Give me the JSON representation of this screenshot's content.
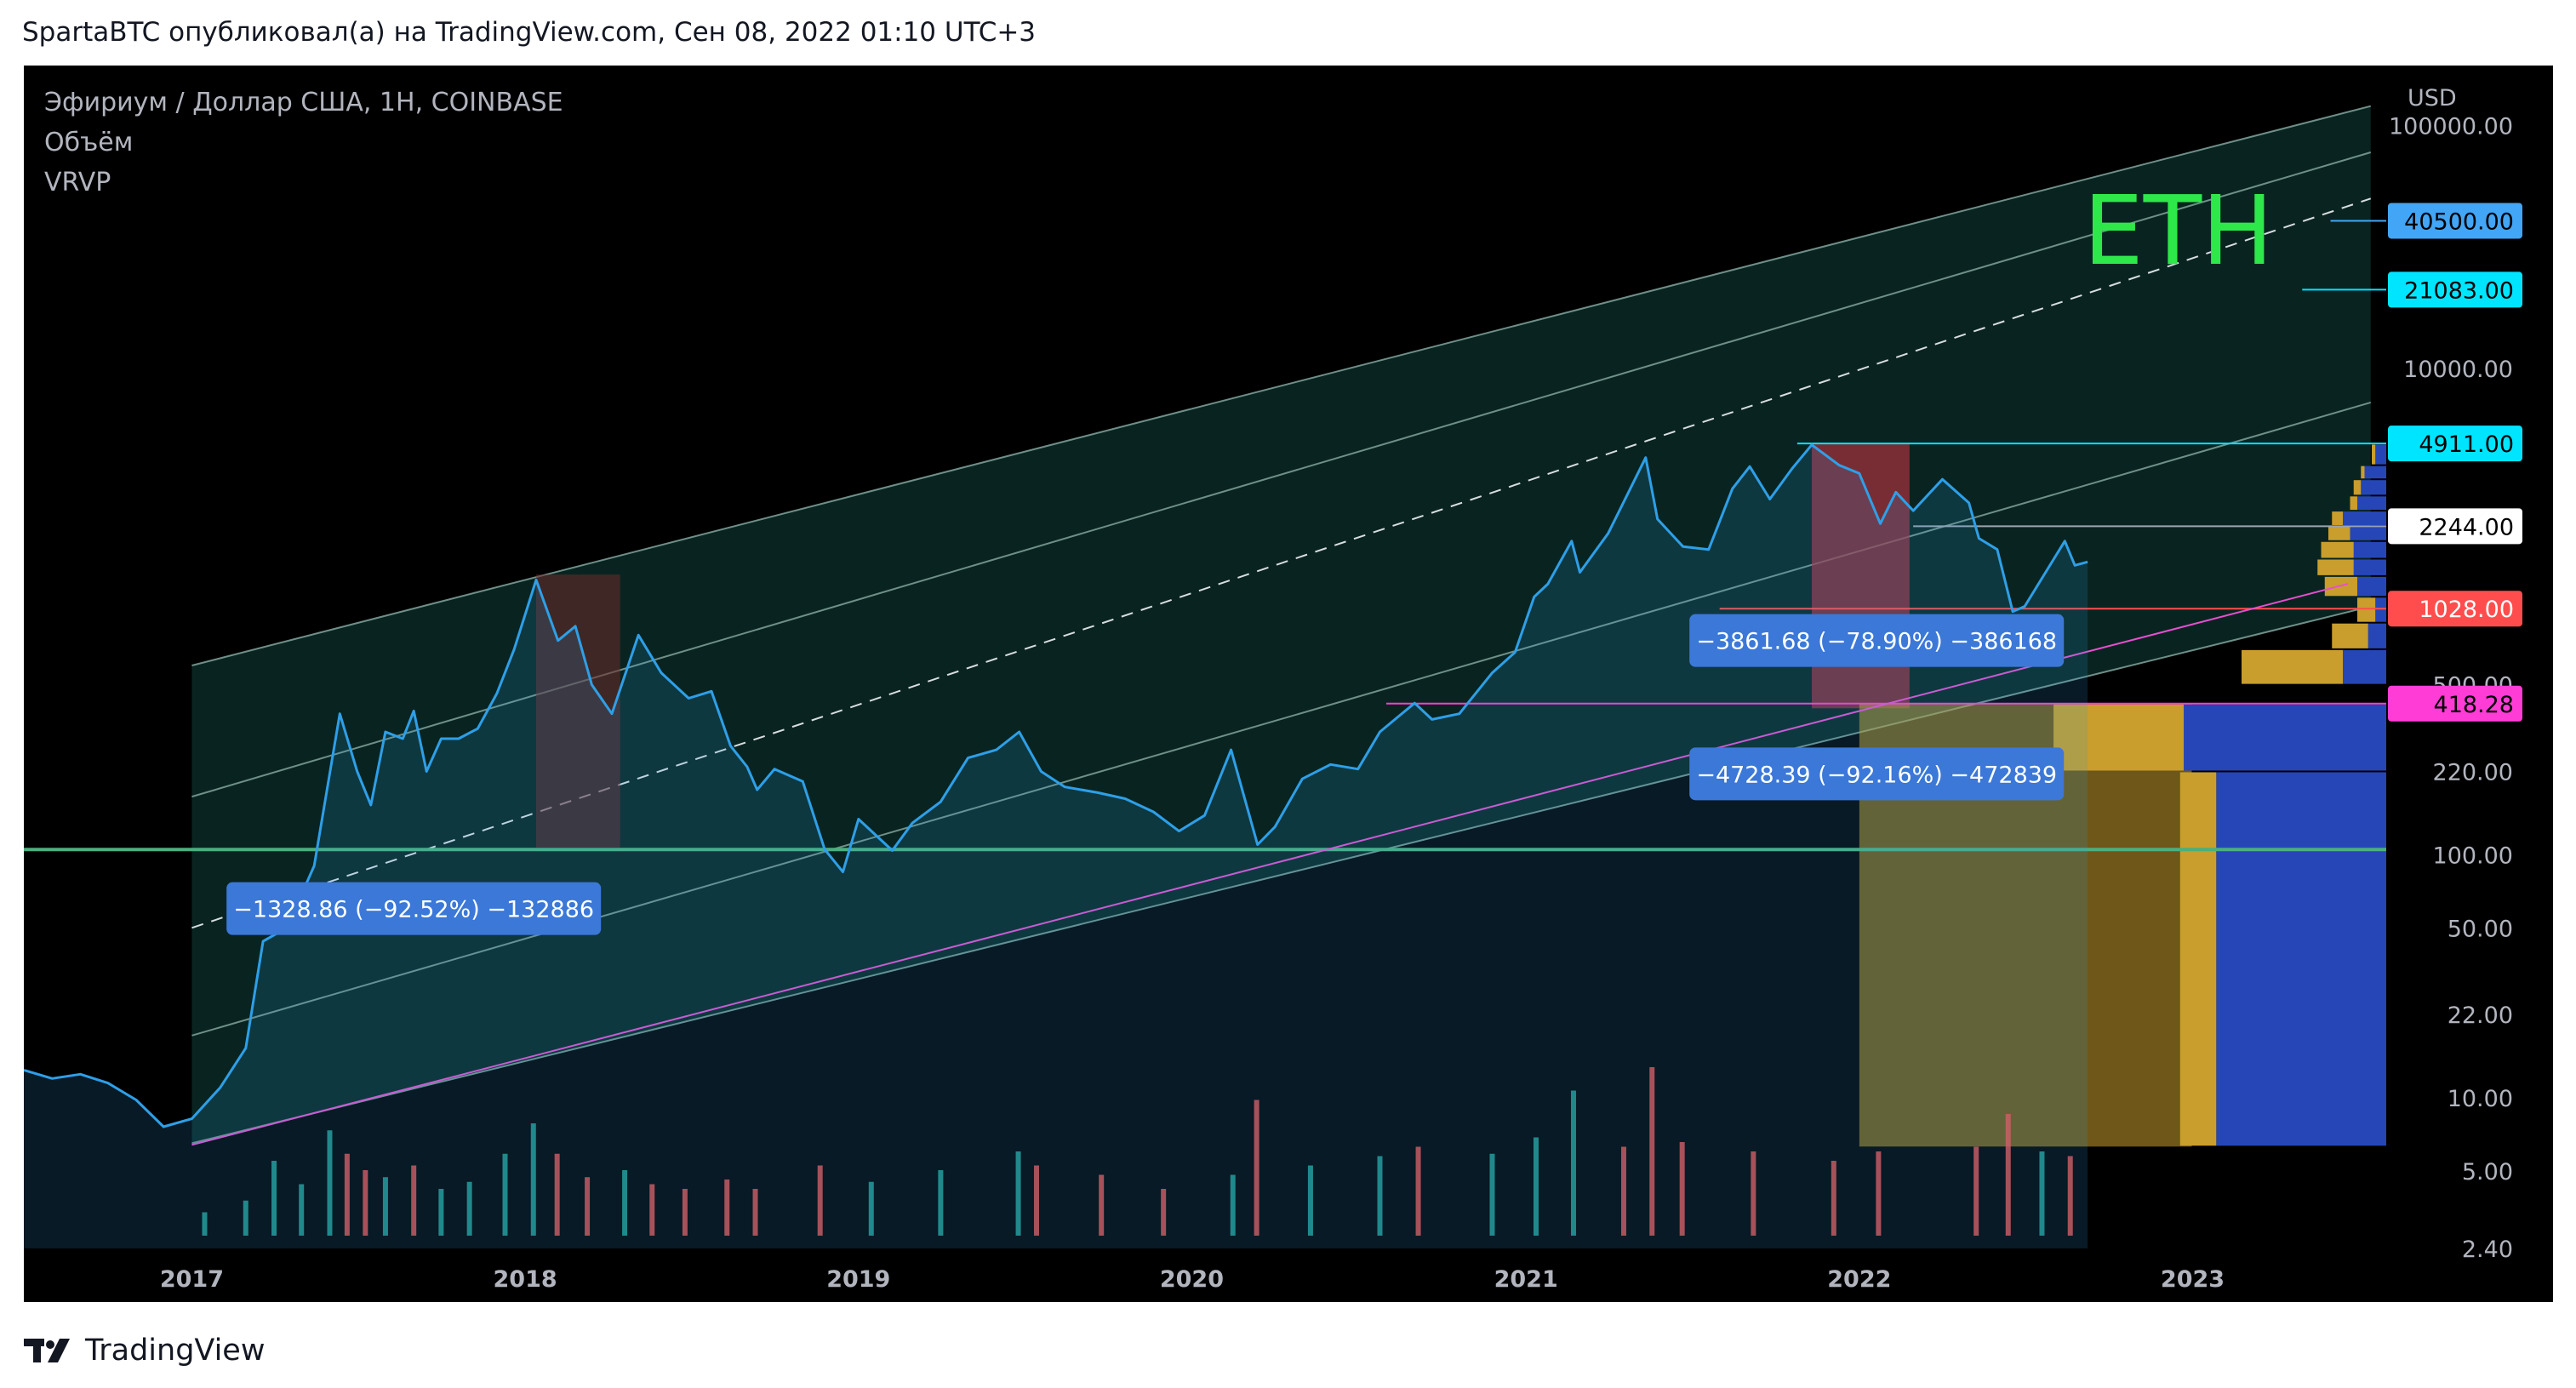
{
  "caption": "SpartaBTC опубликовал(а) на TradingView.com, Сен 08, 2022 01:10 UTC+3",
  "footer": {
    "brand": "TradingView",
    "logo_icon": "tradingview-logo-icon"
  },
  "legend": {
    "symbol": "Эфириум / Доллар США, 1H, COINBASE",
    "indicator1": "Объём",
    "indicator2": "VRVP"
  },
  "colors": {
    "background": "#000000",
    "price_line": "#2e9fe8",
    "channel_fill": "#0b2a26",
    "channel_lines": "#6f8f88",
    "eth_label": "#2ee84a",
    "green_line": "#4caf7d",
    "pink_line": "#e64fd0",
    "vol_up": "#26a69a",
    "vol_down": "#ef5350",
    "callout": "#3b78d8",
    "vrvp_gold": "#c99e2c",
    "vrvp_blue": "#2646b8"
  },
  "chart_data": {
    "type": "line",
    "title": "Эфириум / Доллар США, 1H, COINBASE",
    "annotation_text": "ETH",
    "yscale": "log",
    "ylim": [
      2.4,
      150000
    ],
    "xlim": [
      "2016-07-01",
      "2023-08-01"
    ],
    "y_unit": "USD",
    "y_ticks": [
      "100000.00",
      "10000.00",
      "500.00",
      "220.00",
      "100.00",
      "50.00",
      "22.00",
      "10.00",
      "5.00",
      "2.40"
    ],
    "y_tick_values": [
      100000,
      10000,
      500,
      220,
      100,
      50,
      22,
      10,
      5,
      2.4
    ],
    "x_ticks": [
      "2017",
      "2018",
      "2019",
      "2020",
      "2021",
      "2022",
      "2023"
    ],
    "x_tick_values": [
      "2017-01-01",
      "2018-01-01",
      "2019-01-01",
      "2020-01-01",
      "2021-01-01",
      "2022-01-01",
      "2023-01-01"
    ],
    "price_labels": [
      {
        "text": "40500.00",
        "value": 40500,
        "bg": "#42a5f5",
        "fg": "#000000"
      },
      {
        "text": "21083.00",
        "value": 21083,
        "bg": "#00e5ff",
        "fg": "#000000"
      },
      {
        "text": "4911.00",
        "value": 4911,
        "bg": "#00e5ff",
        "fg": "#000000"
      },
      {
        "text": "2244.00",
        "value": 2244,
        "bg": "#ffffff",
        "fg": "#000000"
      },
      {
        "text": "1028.00",
        "value": 1028,
        "bg": "#ff4d4d",
        "fg": "#ffffff"
      },
      {
        "text": "418.28",
        "value": 418.28,
        "bg": "#ff3cd6",
        "fg": "#000000"
      }
    ],
    "series": [
      {
        "dates": [
          "2016-07-01",
          "2016-08-01",
          "2016-09-01",
          "2016-10-01",
          "2016-11-01",
          "2016-12-01",
          "2017-01-01",
          "2017-02-01",
          "2017-03-01",
          "2017-03-20",
          "2017-04-15",
          "2017-05-15",
          "2017-06-12",
          "2017-07-01",
          "2017-07-16",
          "2017-08-01",
          "2017-08-20",
          "2017-09-01",
          "2017-09-15",
          "2017-10-01",
          "2017-10-20",
          "2017-11-10",
          "2017-12-01",
          "2017-12-20",
          "2018-01-13",
          "2018-02-06",
          "2018-02-25",
          "2018-03-15",
          "2018-04-06",
          "2018-05-05",
          "2018-05-30",
          "2018-06-29",
          "2018-07-24",
          "2018-08-14",
          "2018-09-01",
          "2018-09-12",
          "2018-10-01",
          "2018-11-01",
          "2018-11-25",
          "2018-12-15",
          "2019-01-01",
          "2019-02-07",
          "2019-03-01",
          "2019-04-01",
          "2019-05-01",
          "2019-06-01",
          "2019-06-26",
          "2019-07-20",
          "2019-08-15",
          "2019-09-20",
          "2019-10-20",
          "2019-11-20",
          "2019-12-18",
          "2020-01-15",
          "2020-02-13",
          "2020-03-13",
          "2020-04-01",
          "2020-05-01",
          "2020-06-01",
          "2020-07-01",
          "2020-07-25",
          "2020-09-01",
          "2020-09-20",
          "2020-10-20",
          "2020-11-25",
          "2020-12-20",
          "2021-01-10",
          "2021-01-25",
          "2021-02-20",
          "2021-03-01",
          "2021-04-01",
          "2021-05-12",
          "2021-05-25",
          "2021-06-22",
          "2021-07-20",
          "2021-08-15",
          "2021-09-03",
          "2021-09-25",
          "2021-10-20",
          "2021-11-10",
          "2021-12-10",
          "2022-01-01",
          "2022-01-24",
          "2022-02-10",
          "2022-03-01",
          "2022-04-02",
          "2022-05-01",
          "2022-05-12",
          "2022-06-01",
          "2022-06-18",
          "2022-07-01",
          "2022-08-14",
          "2022-08-25",
          "2022-09-08"
        ],
        "values": [
          13,
          12,
          12.5,
          11.5,
          9.8,
          7.6,
          8.2,
          11,
          16,
          44,
          50,
          90,
          380,
          220,
          160,
          320,
          300,
          390,
          220,
          300,
          300,
          330,
          460,
          700,
          1350,
          760,
          870,
          500,
          380,
          800,
          560,
          440,
          470,
          280,
          230,
          185,
          225,
          200,
          105,
          85,
          140,
          104,
          135,
          165,
          250,
          270,
          320,
          220,
          190,
          180,
          170,
          150,
          125,
          145,
          270,
          110,
          130,
          205,
          235,
          225,
          320,
          420,
          360,
          380,
          560,
          680,
          1150,
          1300,
          1950,
          1450,
          2100,
          4300,
          2400,
          1850,
          1800,
          3200,
          3950,
          2900,
          3900,
          4850,
          4000,
          3700,
          2300,
          3100,
          2600,
          3500,
          2800,
          2000,
          1800,
          1000,
          1050,
          1950,
          1550,
          1600
        ],
        "name": ""
      }
    ],
    "volume": [
      {
        "date": "2017-01-15",
        "v": 1.0,
        "dir": "up"
      },
      {
        "date": "2017-03-01",
        "v": 1.5,
        "dir": "up"
      },
      {
        "date": "2017-04-01",
        "v": 3.2,
        "dir": "up"
      },
      {
        "date": "2017-05-01",
        "v": 2.2,
        "dir": "up"
      },
      {
        "date": "2017-06-01",
        "v": 4.5,
        "dir": "up"
      },
      {
        "date": "2017-06-20",
        "v": 3.5,
        "dir": "down"
      },
      {
        "date": "2017-07-10",
        "v": 2.8,
        "dir": "down"
      },
      {
        "date": "2017-08-01",
        "v": 2.5,
        "dir": "up"
      },
      {
        "date": "2017-09-01",
        "v": 3.0,
        "dir": "down"
      },
      {
        "date": "2017-10-01",
        "v": 2.0,
        "dir": "up"
      },
      {
        "date": "2017-11-01",
        "v": 2.3,
        "dir": "up"
      },
      {
        "date": "2017-12-10",
        "v": 3.5,
        "dir": "up"
      },
      {
        "date": "2018-01-10",
        "v": 4.8,
        "dir": "up"
      },
      {
        "date": "2018-02-05",
        "v": 3.5,
        "dir": "down"
      },
      {
        "date": "2018-03-10",
        "v": 2.5,
        "dir": "down"
      },
      {
        "date": "2018-04-20",
        "v": 2.8,
        "dir": "up"
      },
      {
        "date": "2018-05-20",
        "v": 2.2,
        "dir": "down"
      },
      {
        "date": "2018-06-25",
        "v": 2.0,
        "dir": "down"
      },
      {
        "date": "2018-08-10",
        "v": 2.4,
        "dir": "down"
      },
      {
        "date": "2018-09-10",
        "v": 2.0,
        "dir": "down"
      },
      {
        "date": "2018-11-20",
        "v": 3.0,
        "dir": "down"
      },
      {
        "date": "2019-01-15",
        "v": 2.3,
        "dir": "up"
      },
      {
        "date": "2019-04-01",
        "v": 2.8,
        "dir": "up"
      },
      {
        "date": "2019-06-25",
        "v": 3.6,
        "dir": "up"
      },
      {
        "date": "2019-07-15",
        "v": 3.0,
        "dir": "down"
      },
      {
        "date": "2019-09-24",
        "v": 2.6,
        "dir": "down"
      },
      {
        "date": "2019-12-01",
        "v": 2.0,
        "dir": "down"
      },
      {
        "date": "2020-02-15",
        "v": 2.6,
        "dir": "up"
      },
      {
        "date": "2020-03-12",
        "v": 5.8,
        "dir": "down"
      },
      {
        "date": "2020-05-10",
        "v": 3.0,
        "dir": "up"
      },
      {
        "date": "2020-07-25",
        "v": 3.4,
        "dir": "up"
      },
      {
        "date": "2020-09-05",
        "v": 3.8,
        "dir": "down"
      },
      {
        "date": "2020-11-25",
        "v": 3.5,
        "dir": "up"
      },
      {
        "date": "2021-01-12",
        "v": 4.2,
        "dir": "up"
      },
      {
        "date": "2021-02-22",
        "v": 6.2,
        "dir": "up"
      },
      {
        "date": "2021-04-18",
        "v": 3.8,
        "dir": "down"
      },
      {
        "date": "2021-05-19",
        "v": 7.2,
        "dir": "down"
      },
      {
        "date": "2021-06-21",
        "v": 4.0,
        "dir": "down"
      },
      {
        "date": "2021-09-07",
        "v": 3.6,
        "dir": "down"
      },
      {
        "date": "2021-12-04",
        "v": 3.2,
        "dir": "down"
      },
      {
        "date": "2022-01-22",
        "v": 3.6,
        "dir": "down"
      },
      {
        "date": "2022-05-09",
        "v": 3.8,
        "dir": "down"
      },
      {
        "date": "2022-06-13",
        "v": 5.2,
        "dir": "down"
      },
      {
        "date": "2022-07-20",
        "v": 3.6,
        "dir": "up"
      },
      {
        "date": "2022-08-20",
        "v": 3.4,
        "dir": "down"
      }
    ],
    "vrvp": [
      {
        "low": 500,
        "high": 700,
        "up": 0.28,
        "down": 0.12
      },
      {
        "low": 700,
        "high": 900,
        "up": 0.1,
        "down": 0.05
      },
      {
        "low": 900,
        "high": 1150,
        "up": 0.05,
        "down": 0.03
      },
      {
        "low": 1150,
        "high": 1400,
        "up": 0.09,
        "down": 0.08
      },
      {
        "low": 1400,
        "high": 1650,
        "up": 0.1,
        "down": 0.09
      },
      {
        "low": 1650,
        "high": 1950,
        "up": 0.09,
        "down": 0.09
      },
      {
        "low": 1950,
        "high": 2250,
        "up": 0.06,
        "down": 0.1
      },
      {
        "low": 2250,
        "high": 2600,
        "up": 0.03,
        "down": 0.12
      },
      {
        "low": 2600,
        "high": 3000,
        "up": 0.02,
        "down": 0.08
      },
      {
        "low": 3000,
        "high": 3500,
        "up": 0.02,
        "down": 0.07
      },
      {
        "low": 3500,
        "high": 4000,
        "up": 0.01,
        "down": 0.06
      },
      {
        "low": 4000,
        "high": 4900,
        "up": 0.01,
        "down": 0.03
      },
      {
        "low": 220,
        "high": 418.28,
        "up": 0.36,
        "down": 0.56
      },
      {
        "low": 6.3,
        "high": 220,
        "up": 0.1,
        "down": 0.47
      }
    ],
    "vrvp_extension": {
      "low": 6.3,
      "high": 418.28,
      "start": "2022-01-01",
      "end": "2022-12-31"
    },
    "measurements": [
      {
        "text": "−1328.86 (−92.52%) −132886",
        "label_date": "2017-09-01",
        "label_value": 60,
        "zone_start": "2018-01-13",
        "zone_end": "2018-04-15",
        "zone_high": 1420,
        "zone_low": 107
      },
      {
        "text": "−3861.68 (−78.90%) −386168",
        "label_date": "2022-01-20",
        "label_value": 760,
        "zone_start": "2021-11-10",
        "zone_end": "2022-02-25",
        "zone_high": 4900,
        "zone_low": 400
      },
      {
        "text": "−4728.39 (−92.16%) −472839",
        "label_date": "2022-01-20",
        "label_value": 215,
        "zone_start": "",
        "zone_end": "",
        "zone_high": 0,
        "zone_low": 0
      }
    ],
    "channel": {
      "start_date": "2017-01-01",
      "end_date": "2023-07-15",
      "top_start": 600,
      "top_end": 120000,
      "mid_start": 50,
      "mid_end": 50000,
      "bottom_start": 6.5,
      "bottom_end": 1050
    },
    "levels": [
      {
        "value": 105,
        "color": "#4caf7d",
        "from": "2016-07-01",
        "to": "2023-08-01"
      },
      {
        "value": 418.28,
        "color": "#ff3cd6",
        "from": "2020-08-01",
        "to": "2023-08-01"
      },
      {
        "value": 1028,
        "color": "#ff4d4d",
        "from": "2021-08-01",
        "to": "2023-08-01"
      },
      {
        "value": 2244,
        "color": "#9aa4b0",
        "from": "2022-03-01",
        "to": "2023-08-01"
      },
      {
        "value": 4911,
        "color": "#00e5ff",
        "from": "2021-10-25",
        "to": "2023-08-01"
      },
      {
        "value": 21083,
        "color": "#00e5ff",
        "from": "2023-05-01",
        "to": "2023-08-01"
      },
      {
        "value": 40500,
        "color": "#42a5f5",
        "from": "2023-06-01",
        "to": "2023-08-01"
      }
    ],
    "pink_trendline": {
      "start_date": "2017-01-01",
      "start_value": 6.4,
      "end_date": "2023-06-20",
      "end_value": 1300
    }
  }
}
